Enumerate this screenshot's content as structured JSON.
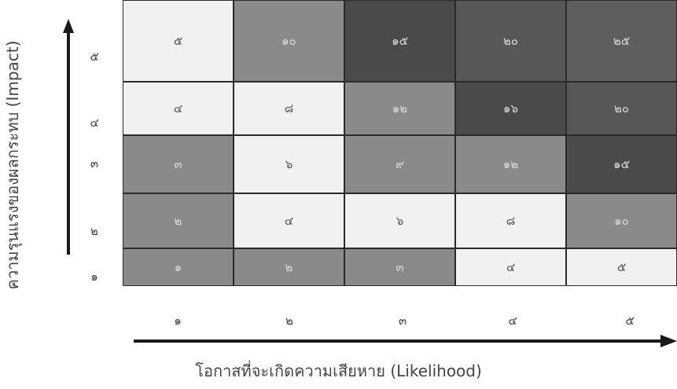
{
  "y_axis_label": "ความรุนแรงของผลกระทบ (Impact)",
  "x_axis_label": "โอกาสที่จะเกิดความเสียหาย (Likelihood)",
  "row_labels": [
    "๕",
    "๔",
    "๓",
    "๒",
    "๑"
  ],
  "col_labels": [
    "๑",
    "๒",
    "๓",
    "๔",
    "๕"
  ],
  "rows": [
    [
      {
        "text": "๕",
        "color": "#f1f1f1"
      },
      {
        "text": "๑๐",
        "color": "#8a8a8a"
      },
      {
        "text": "๑๕",
        "color": "#4a4a4a"
      },
      {
        "text": "๒๐",
        "color": "#575757"
      },
      {
        "text": "๒๕",
        "color": "#5e5e5e"
      }
    ],
    [
      {
        "text": "๔",
        "color": "#f1f1f1"
      },
      {
        "text": "๘",
        "color": "#f1f1f1"
      },
      {
        "text": "๑๒",
        "color": "#8a8a8a"
      },
      {
        "text": "๑๖",
        "color": "#4a4a4a"
      },
      {
        "text": "๒๐",
        "color": "#575757"
      }
    ],
    [
      {
        "text": "๓",
        "color": "#8a8a8a"
      },
      {
        "text": "๖",
        "color": "#f1f1f1"
      },
      {
        "text": "๙",
        "color": "#8a8a8a"
      },
      {
        "text": "๑๒",
        "color": "#8a8a8a"
      },
      {
        "text": "๑๕",
        "color": "#4a4a4a"
      }
    ],
    [
      {
        "text": "๒",
        "color": "#8a8a8a"
      },
      {
        "text": "๔",
        "color": "#f1f1f1"
      },
      {
        "text": "๖",
        "color": "#f1f1f1"
      },
      {
        "text": "๘",
        "color": "#f1f1f1"
      },
      {
        "text": "๑๐",
        "color": "#8a8a8a"
      }
    ],
    [
      {
        "text": "๑",
        "color": "#8a8a8a"
      },
      {
        "text": "๒",
        "color": "#8a8a8a"
      },
      {
        "text": "๓",
        "color": "#8a8a8a"
      },
      {
        "text": "๔",
        "color": "#f1f1f1"
      },
      {
        "text": "๕",
        "color": "#f1f1f1"
      }
    ]
  ]
}
